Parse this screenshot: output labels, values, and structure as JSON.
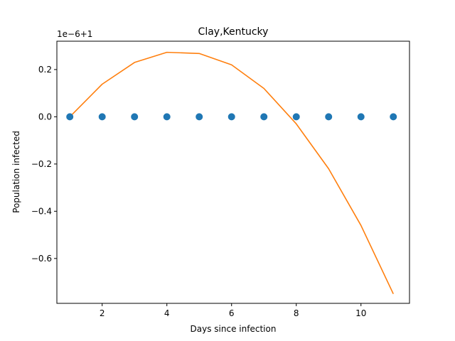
{
  "chart_data": {
    "type": "scatter",
    "title": "Clay,Kentucky",
    "xlabel": "Days since infection",
    "ylabel": "Population infected",
    "offset_label": "1e−6+1",
    "xlim": [
      0.6,
      11.5
    ],
    "ylim": [
      -0.79,
      0.32
    ],
    "xticks": [
      2,
      4,
      6,
      8,
      10
    ],
    "xtick_labels": [
      "2",
      "4",
      "6",
      "8",
      "10"
    ],
    "yticks": [
      -0.6,
      -0.4,
      -0.2,
      0.0,
      0.2
    ],
    "ytick_labels": [
      "−0.6",
      "−0.4",
      "−0.2",
      "0.0",
      "0.2"
    ],
    "grid": false,
    "series": [
      {
        "kind": "scatter",
        "color": "#1f77b4",
        "x": [
          1,
          2,
          3,
          4,
          5,
          6,
          7,
          8,
          9,
          10,
          11
        ],
        "y": [
          0,
          0,
          0,
          0,
          0,
          0,
          0,
          0,
          0,
          0,
          0
        ]
      },
      {
        "kind": "line",
        "color": "#ff7f0e",
        "x": [
          1,
          2,
          3,
          4,
          5,
          6,
          7,
          8,
          9,
          10,
          11
        ],
        "y": [
          0.0,
          0.138,
          0.23,
          0.273,
          0.268,
          0.22,
          0.12,
          -0.03,
          -0.22,
          -0.46,
          -0.75
        ]
      }
    ]
  }
}
